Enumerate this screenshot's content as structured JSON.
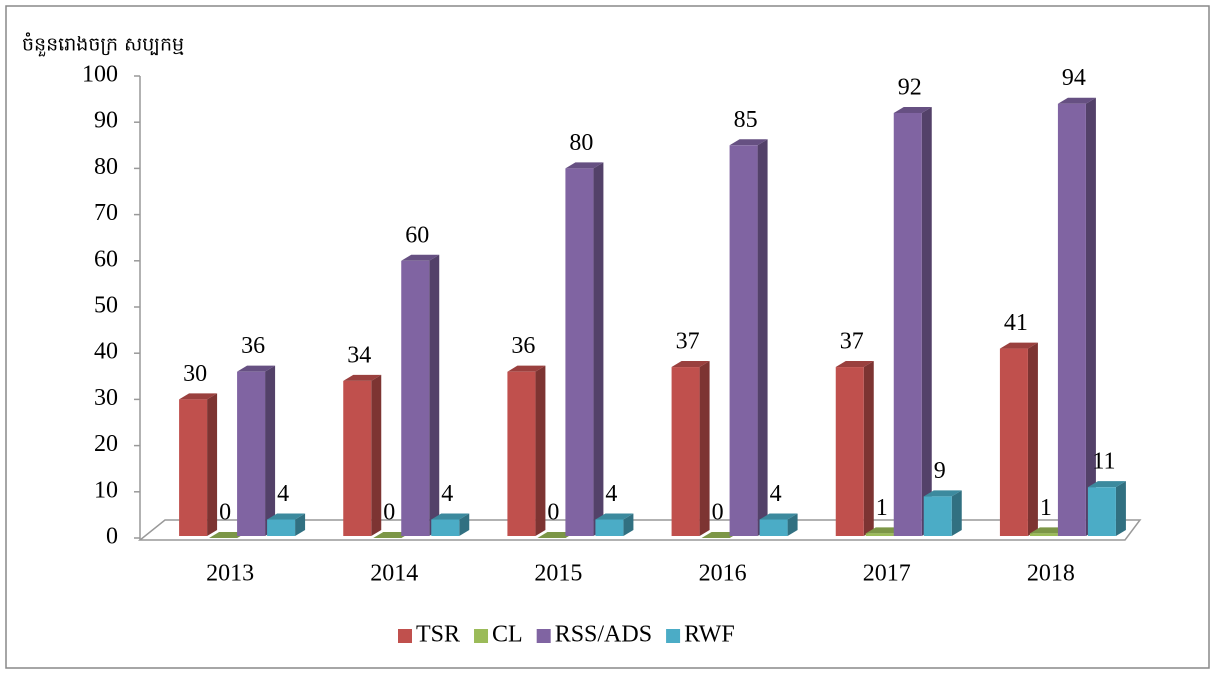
{
  "chart_data": {
    "type": "bar3d",
    "y_axis_label": "ចំនួនរោងចក្រ សប្បកម្ម",
    "categories": [
      "2013",
      "2014",
      "2015",
      "2016",
      "2017",
      "2018"
    ],
    "series": [
      {
        "name": "TSR",
        "color": "#c0504d",
        "values": [
          30,
          34,
          36,
          37,
          37,
          41
        ]
      },
      {
        "name": "CL",
        "color": "#9bbb59",
        "values": [
          0,
          0,
          0,
          0,
          1,
          1
        ]
      },
      {
        "name": "RSS/ADS",
        "color": "#8064a2",
        "values": [
          36,
          60,
          80,
          85,
          92,
          94
        ]
      },
      {
        "name": "RWF",
        "color": "#4bacc6",
        "values": [
          4,
          4,
          4,
          4,
          9,
          11
        ]
      }
    ],
    "ylim": [
      0,
      100
    ],
    "yticks": [
      0,
      10,
      20,
      30,
      40,
      50,
      60,
      70,
      80,
      90,
      100
    ],
    "legend": "bottom"
  }
}
